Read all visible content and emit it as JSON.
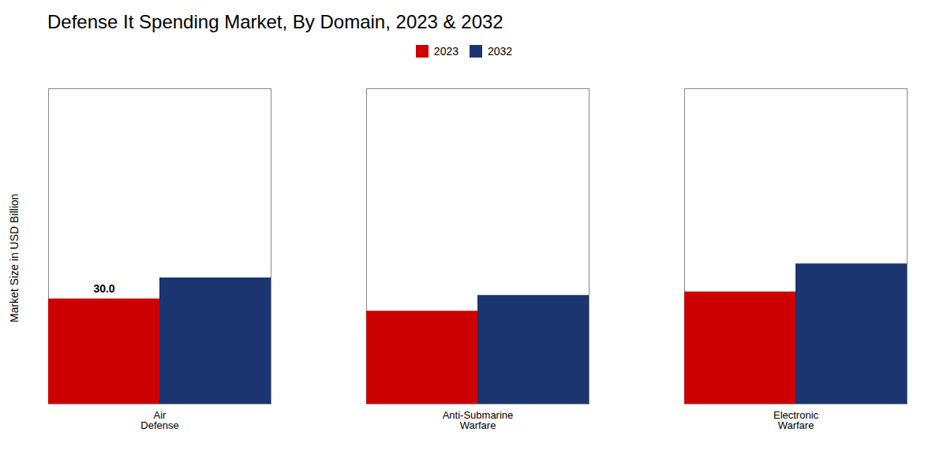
{
  "chart_data": {
    "type": "bar",
    "title": "Defense It Spending Market, By Domain, 2023 & 2032",
    "ylabel": "Market Size in USD Billion",
    "categories": [
      "Air\nDefense",
      "Anti-Submarine\nWarfare",
      "Electronic\nWarfare"
    ],
    "series": [
      {
        "name": "2023",
        "color": "#cc0000",
        "values": [
          30.0,
          26.5,
          32.0
        ]
      },
      {
        "name": "2032",
        "color": "#1a3570",
        "values": [
          36.0,
          31.0,
          40.0
        ]
      }
    ],
    "ylim": [
      0,
      90
    ],
    "tick_labels": "x",
    "grid": false,
    "legend": "top",
    "annotations": [
      {
        "text": "30.0",
        "category": "Air\nDefense",
        "series": "2023",
        "y": 30.0
      }
    ]
  }
}
